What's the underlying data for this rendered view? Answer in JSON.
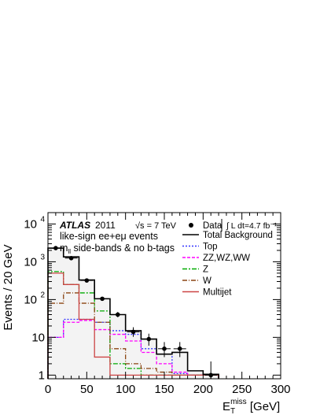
{
  "chart_data": {
    "type": "line",
    "plot_style": "step histogram with overlaid data points",
    "x_unit_label": "E_T^miss [GeV]",
    "ylabel": "Events / 20 GeV",
    "xlim": [
      0,
      300
    ],
    "ylim": [
      0.8,
      20000
    ],
    "y_scale": "log",
    "grid": false,
    "legend_position": "top-right",
    "bin_width": 20,
    "bin_edges": [
      0,
      20,
      40,
      60,
      80,
      100,
      120,
      140,
      160,
      180,
      200,
      220
    ],
    "x_ticks": [
      0,
      50,
      100,
      150,
      200,
      250,
      300
    ],
    "y_ticks": [
      {
        "value": 1,
        "label": "1"
      },
      {
        "value": 10,
        "label": "10"
      },
      {
        "value": 100,
        "label": "10",
        "exp": "2"
      },
      {
        "value": 1000,
        "label": "10",
        "exp": "3"
      },
      {
        "value": 10000,
        "label": "10",
        "exp": "4"
      }
    ],
    "annotations": {
      "experiment": "ATLAS",
      "year": "2011",
      "energy": "√s = 7 TeV",
      "lumi": "∫ L dt=4.7 fb⁻¹",
      "line1": "like-sign ee+eμ events",
      "line2": "m_ll side-bands & no b-tags"
    },
    "data_points": {
      "name": "Data",
      "x": [
        10,
        30,
        50,
        70,
        90,
        110,
        130,
        150,
        170,
        210
      ],
      "y": [
        2300,
        1250,
        320,
        105,
        40,
        14,
        9,
        5,
        5,
        1
      ],
      "err_up": [
        2350,
        1290,
        338,
        116,
        47,
        18.5,
        12.5,
        7.5,
        7.5,
        2.3
      ],
      "err_down": [
        2250,
        1210,
        302,
        95,
        34,
        10.3,
        6,
        3,
        3,
        0.8
      ]
    },
    "series": [
      {
        "name": "Total Background",
        "color": "#000000",
        "dash": "",
        "values": [
          2300,
          1350,
          330,
          105,
          40,
          15,
          9,
          3.6,
          4.0,
          1.3,
          1.05
        ]
      },
      {
        "name": "Top",
        "color": "#3333ff",
        "dash": "2,2",
        "values": [
          10,
          30,
          30,
          25,
          15,
          12,
          5,
          3.6,
          1.1,
          1.0,
          1.0
        ]
      },
      {
        "name": "ZZ,WZ,WW",
        "color": "#ff00ff",
        "dash": "4,2",
        "values": [
          10,
          25,
          28,
          16,
          12,
          8,
          4,
          2,
          1.2,
          1.0,
          1.0
        ]
      },
      {
        "name": "Z",
        "color": "#00aa00",
        "dash": "6,2,2,2",
        "values": [
          550,
          250,
          150,
          50,
          2,
          1.5,
          1.0,
          1.0,
          1.0,
          1.0,
          1.0
        ]
      },
      {
        "name": "W",
        "color": "#8b4513",
        "dash": "6,2,1,2",
        "values": [
          80,
          150,
          80,
          25,
          5,
          2,
          1.5,
          1.2,
          1.0,
          1.0,
          1.0
        ]
      },
      {
        "name": "Multijet",
        "color": "#cc4444",
        "dash": "",
        "values": [
          500,
          250,
          30,
          3,
          1.0,
          1.0,
          1.0,
          1.0,
          1.0,
          1.0,
          1.0
        ]
      }
    ]
  }
}
